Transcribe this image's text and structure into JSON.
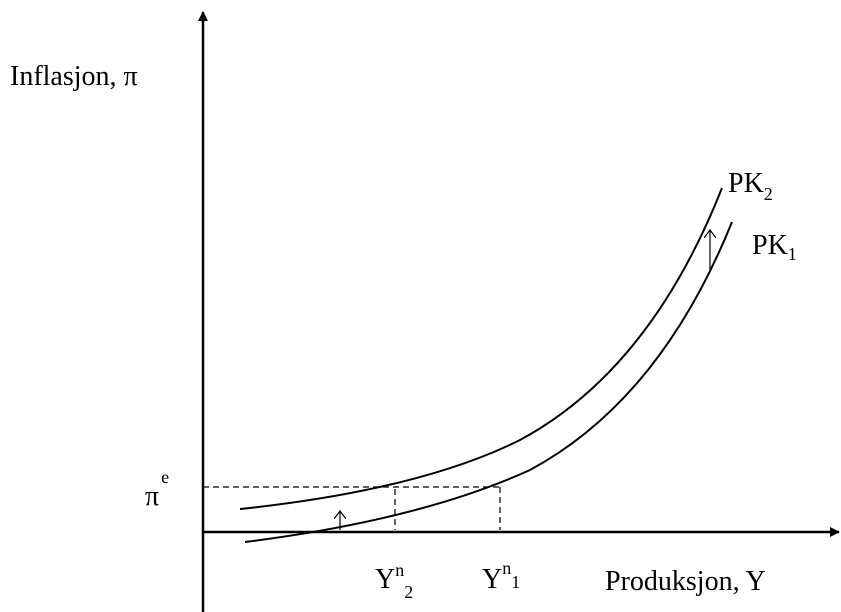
{
  "axes": {
    "y_label": "Inflasjon, π",
    "x_label": "Produksjon, Y"
  },
  "curves": [
    {
      "label": "PK",
      "subscript": "2"
    },
    {
      "label": "PK",
      "subscript": "1"
    }
  ],
  "expected_inflation": {
    "symbol": "π",
    "superscript": "e"
  },
  "natural_output": [
    {
      "symbol": "Y",
      "superscript": "n",
      "subscript": "2"
    },
    {
      "symbol": "Y",
      "superscript": "n",
      "subscript": "1"
    }
  ]
}
